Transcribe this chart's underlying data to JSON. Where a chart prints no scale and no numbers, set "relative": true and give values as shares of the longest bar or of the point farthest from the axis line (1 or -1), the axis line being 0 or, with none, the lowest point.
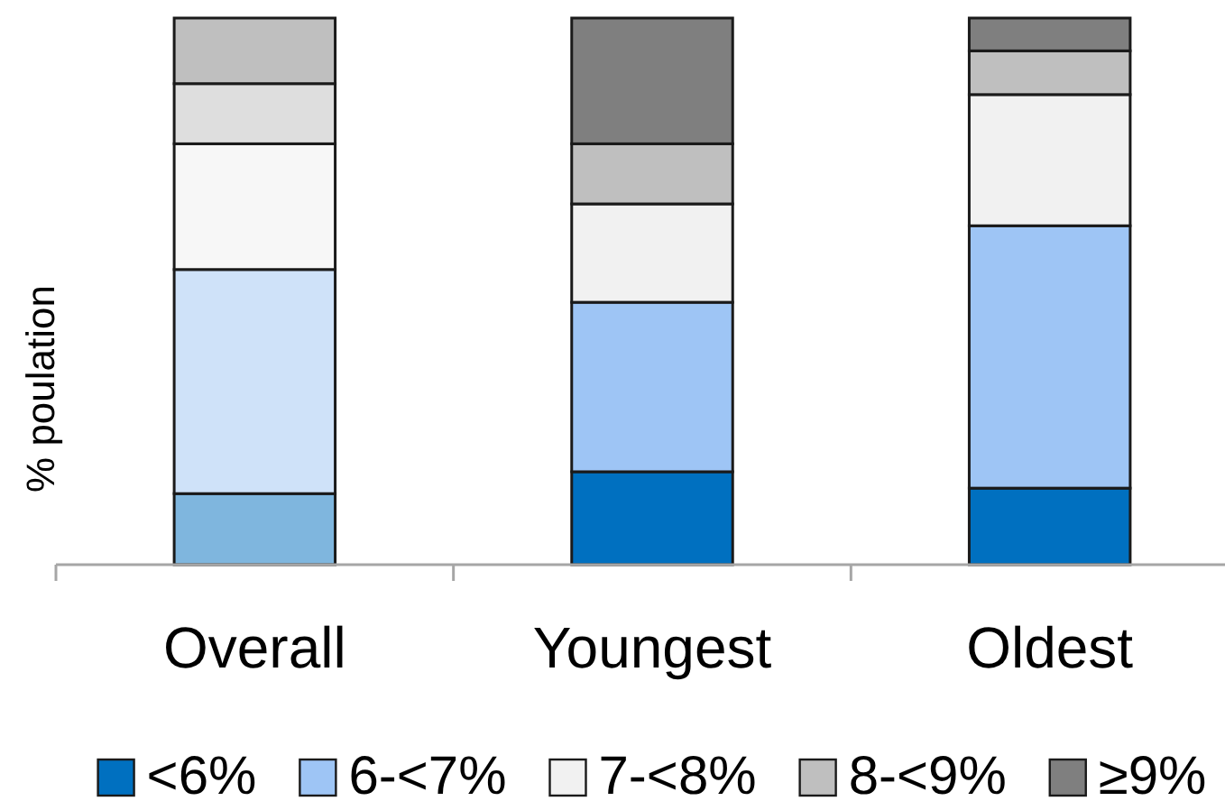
{
  "chart_data": {
    "type": "bar",
    "stacked": true,
    "relative": true,
    "ylabel": "% poulation",
    "legend": "bottom",
    "categories": [
      "Overall",
      "Youngest",
      "Oldest"
    ],
    "series": [
      {
        "name": "<6%",
        "color": "#0070c0",
        "colors": [
          "#7fb6de",
          "#0070c0",
          "#0070c0"
        ],
        "values": [
          0.13,
          0.17,
          0.14
        ]
      },
      {
        "name": "6-<7%",
        "color": "#9ec5f5",
        "colors": [
          "#cfe2f9",
          "#9ec5f5",
          "#9ec5f5"
        ],
        "values": [
          0.41,
          0.31,
          0.48
        ]
      },
      {
        "name": "7-<8%",
        "color": "#f1f1f1",
        "colors": [
          "#f7f7f7",
          "#f1f1f1",
          "#f1f1f1"
        ],
        "values": [
          0.23,
          0.18,
          0.24
        ]
      },
      {
        "name": "8-<9%",
        "color": "#bfbfbf",
        "colors": [
          "#dedede",
          "#bfbfbf",
          "#bfbfbf"
        ],
        "values": [
          0.11,
          0.11,
          0.08
        ]
      },
      {
        "name": "≥9%",
        "color": "#7f7f7f",
        "colors": [
          "#bfbfbf",
          "#7f7f7f",
          "#7f7f7f"
        ],
        "values": [
          0.12,
          0.23,
          0.06
        ]
      }
    ]
  }
}
